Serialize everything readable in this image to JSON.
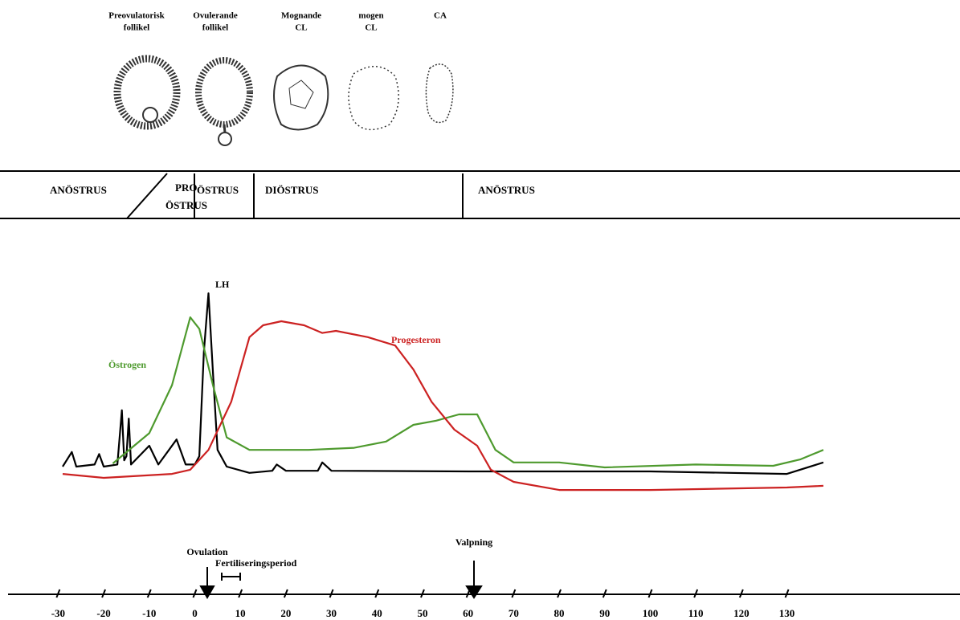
{
  "stages": [
    {
      "lines": [
        "Preovulatorisk",
        "follikel"
      ]
    },
    {
      "lines": [
        "Ovulerande",
        "follikel"
      ]
    },
    {
      "lines": [
        "Mognande",
        "CL"
      ]
    },
    {
      "lines": [
        "mogen",
        "CL"
      ]
    },
    {
      "lines": [
        "CA"
      ]
    }
  ],
  "phases": [
    {
      "lines": [
        "ANÖSTRUS"
      ]
    },
    {
      "lines": [
        "PRO",
        "ÖSTRUS"
      ]
    },
    {
      "lines": [
        "ÖSTRUS"
      ]
    },
    {
      "lines": [
        "DIÖSTRUS"
      ]
    },
    {
      "lines": [
        "ANÖSTRUS"
      ]
    }
  ],
  "events": {
    "ovulation": "Ovulation",
    "fertilization": "Fertiliseringsperiod",
    "whelping": "Valpning"
  },
  "chart_data": {
    "type": "line",
    "xlim": [
      -41,
      168
    ],
    "xticks": [
      -30,
      -20,
      -10,
      0,
      10,
      20,
      30,
      40,
      50,
      60,
      70,
      80,
      90,
      100,
      110,
      120,
      130
    ],
    "ylim": [
      0,
      100
    ],
    "series": [
      {
        "name": "LH",
        "color": "#000000",
        "x": [
          -29,
          -27,
          -26,
          -22,
          -21,
          -20,
          -17,
          -16,
          -15.5,
          -15,
          -14.5,
          -14,
          -10,
          -8,
          -4,
          -2,
          0,
          1,
          2,
          3,
          4,
          5,
          7,
          12,
          17,
          18,
          20,
          27,
          28,
          30,
          60,
          100,
          130,
          138
        ],
        "values": [
          15,
          22,
          15,
          16,
          21,
          15,
          16,
          42,
          18,
          20,
          38,
          16,
          25,
          16,
          28,
          16,
          16,
          20,
          70,
          98,
          60,
          23,
          15,
          12,
          13,
          16,
          13,
          13,
          17,
          13,
          12.7,
          12.7,
          11.5,
          17
        ]
      },
      {
        "name": "Östrogen",
        "color": "#4e9a2e",
        "x": [
          -18,
          -10,
          -5,
          -1,
          1,
          4,
          7,
          12,
          25,
          35,
          42,
          48,
          53,
          58,
          62,
          66,
          70,
          80,
          90,
          110,
          127,
          133,
          138
        ],
        "values": [
          16.5,
          31,
          54,
          86.5,
          81,
          54,
          29,
          23,
          23,
          24,
          27,
          35,
          37,
          40,
          40,
          23,
          17,
          17,
          14.6,
          16,
          15.4,
          18.5,
          23
        ]
      },
      {
        "name": "Progesteron",
        "color": "#cc2222",
        "x": [
          -29,
          -20,
          -5,
          -1,
          3,
          8,
          12,
          15,
          19,
          24,
          28,
          31,
          38,
          44,
          48,
          52,
          57,
          62,
          65,
          70,
          80,
          100,
          130,
          138
        ],
        "values": [
          11.5,
          9.6,
          11.5,
          13.5,
          23,
          46,
          77,
          82.7,
          84.6,
          82.7,
          79,
          80,
          77,
          73,
          61.5,
          46,
          32.7,
          25,
          13.5,
          7.7,
          3.8,
          3.8,
          5,
          5.8
        ]
      }
    ]
  }
}
